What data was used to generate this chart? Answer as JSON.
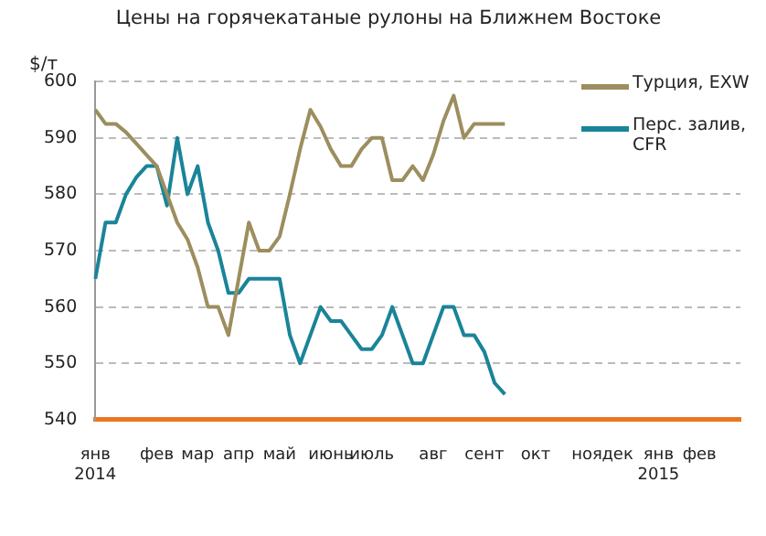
{
  "chart_data": {
    "type": "line",
    "title": "Цены на горячекатаные рулоны на Ближнем Востоке",
    "ylabel": "$/т",
    "categories": [
      "янв 2014",
      null,
      null,
      null,
      null,
      null,
      "фев",
      null,
      null,
      null,
      "мар",
      null,
      null,
      null,
      "апр",
      null,
      null,
      null,
      "май",
      null,
      null,
      null,
      null,
      "июнь",
      null,
      null,
      null,
      "июль",
      null,
      null,
      null,
      null,
      null,
      "авг",
      null,
      null,
      null,
      null,
      "сент",
      null,
      null,
      null,
      null,
      "окт",
      null,
      null,
      null,
      null,
      "ноя",
      null,
      null,
      "дек",
      null,
      null,
      null,
      "янв 2015",
      null,
      null,
      null,
      "фев",
      null,
      null,
      null,
      null
    ],
    "series": [
      {
        "name": "Турция, EXW",
        "color": "#9c8e5e",
        "values": [
          595,
          592.5,
          592.5,
          591,
          589,
          587,
          585,
          580,
          575,
          572,
          567,
          560,
          560,
          555,
          565,
          575,
          570,
          570,
          572.5,
          580,
          588,
          595,
          592,
          588,
          585,
          585,
          588,
          590,
          590,
          582.5,
          582.5,
          585,
          582.5,
          587,
          593,
          597.5,
          590,
          592.5,
          592.5,
          592.5,
          592.5,
          null,
          null,
          null,
          null,
          null,
          null,
          null,
          null,
          null,
          null,
          null,
          null,
          null,
          null,
          null,
          null,
          null,
          null,
          null,
          null,
          null,
          null,
          null
        ]
      },
      {
        "name": "Перс. залив, CFR",
        "color": "#1a8499",
        "values": [
          565,
          575,
          575,
          580,
          583,
          585,
          585,
          578,
          590,
          580,
          585,
          575,
          570,
          562.5,
          562.5,
          565,
          565,
          565,
          565,
          555,
          550,
          555,
          560,
          557.5,
          557.5,
          555,
          552.5,
          552.5,
          555,
          560,
          555,
          550,
          550,
          555,
          560,
          560,
          555,
          555,
          552,
          546.5,
          544.5,
          null,
          null,
          null,
          null,
          null,
          null,
          null,
          null,
          null,
          null,
          null,
          null,
          null,
          null,
          null,
          null,
          null,
          null,
          null,
          null,
          null,
          null,
          null
        ]
      }
    ],
    "ylim": [
      540,
      600
    ],
    "yticks": [
      540,
      550,
      560,
      570,
      580,
      590,
      600
    ],
    "grid": "y",
    "legend": "top right"
  }
}
